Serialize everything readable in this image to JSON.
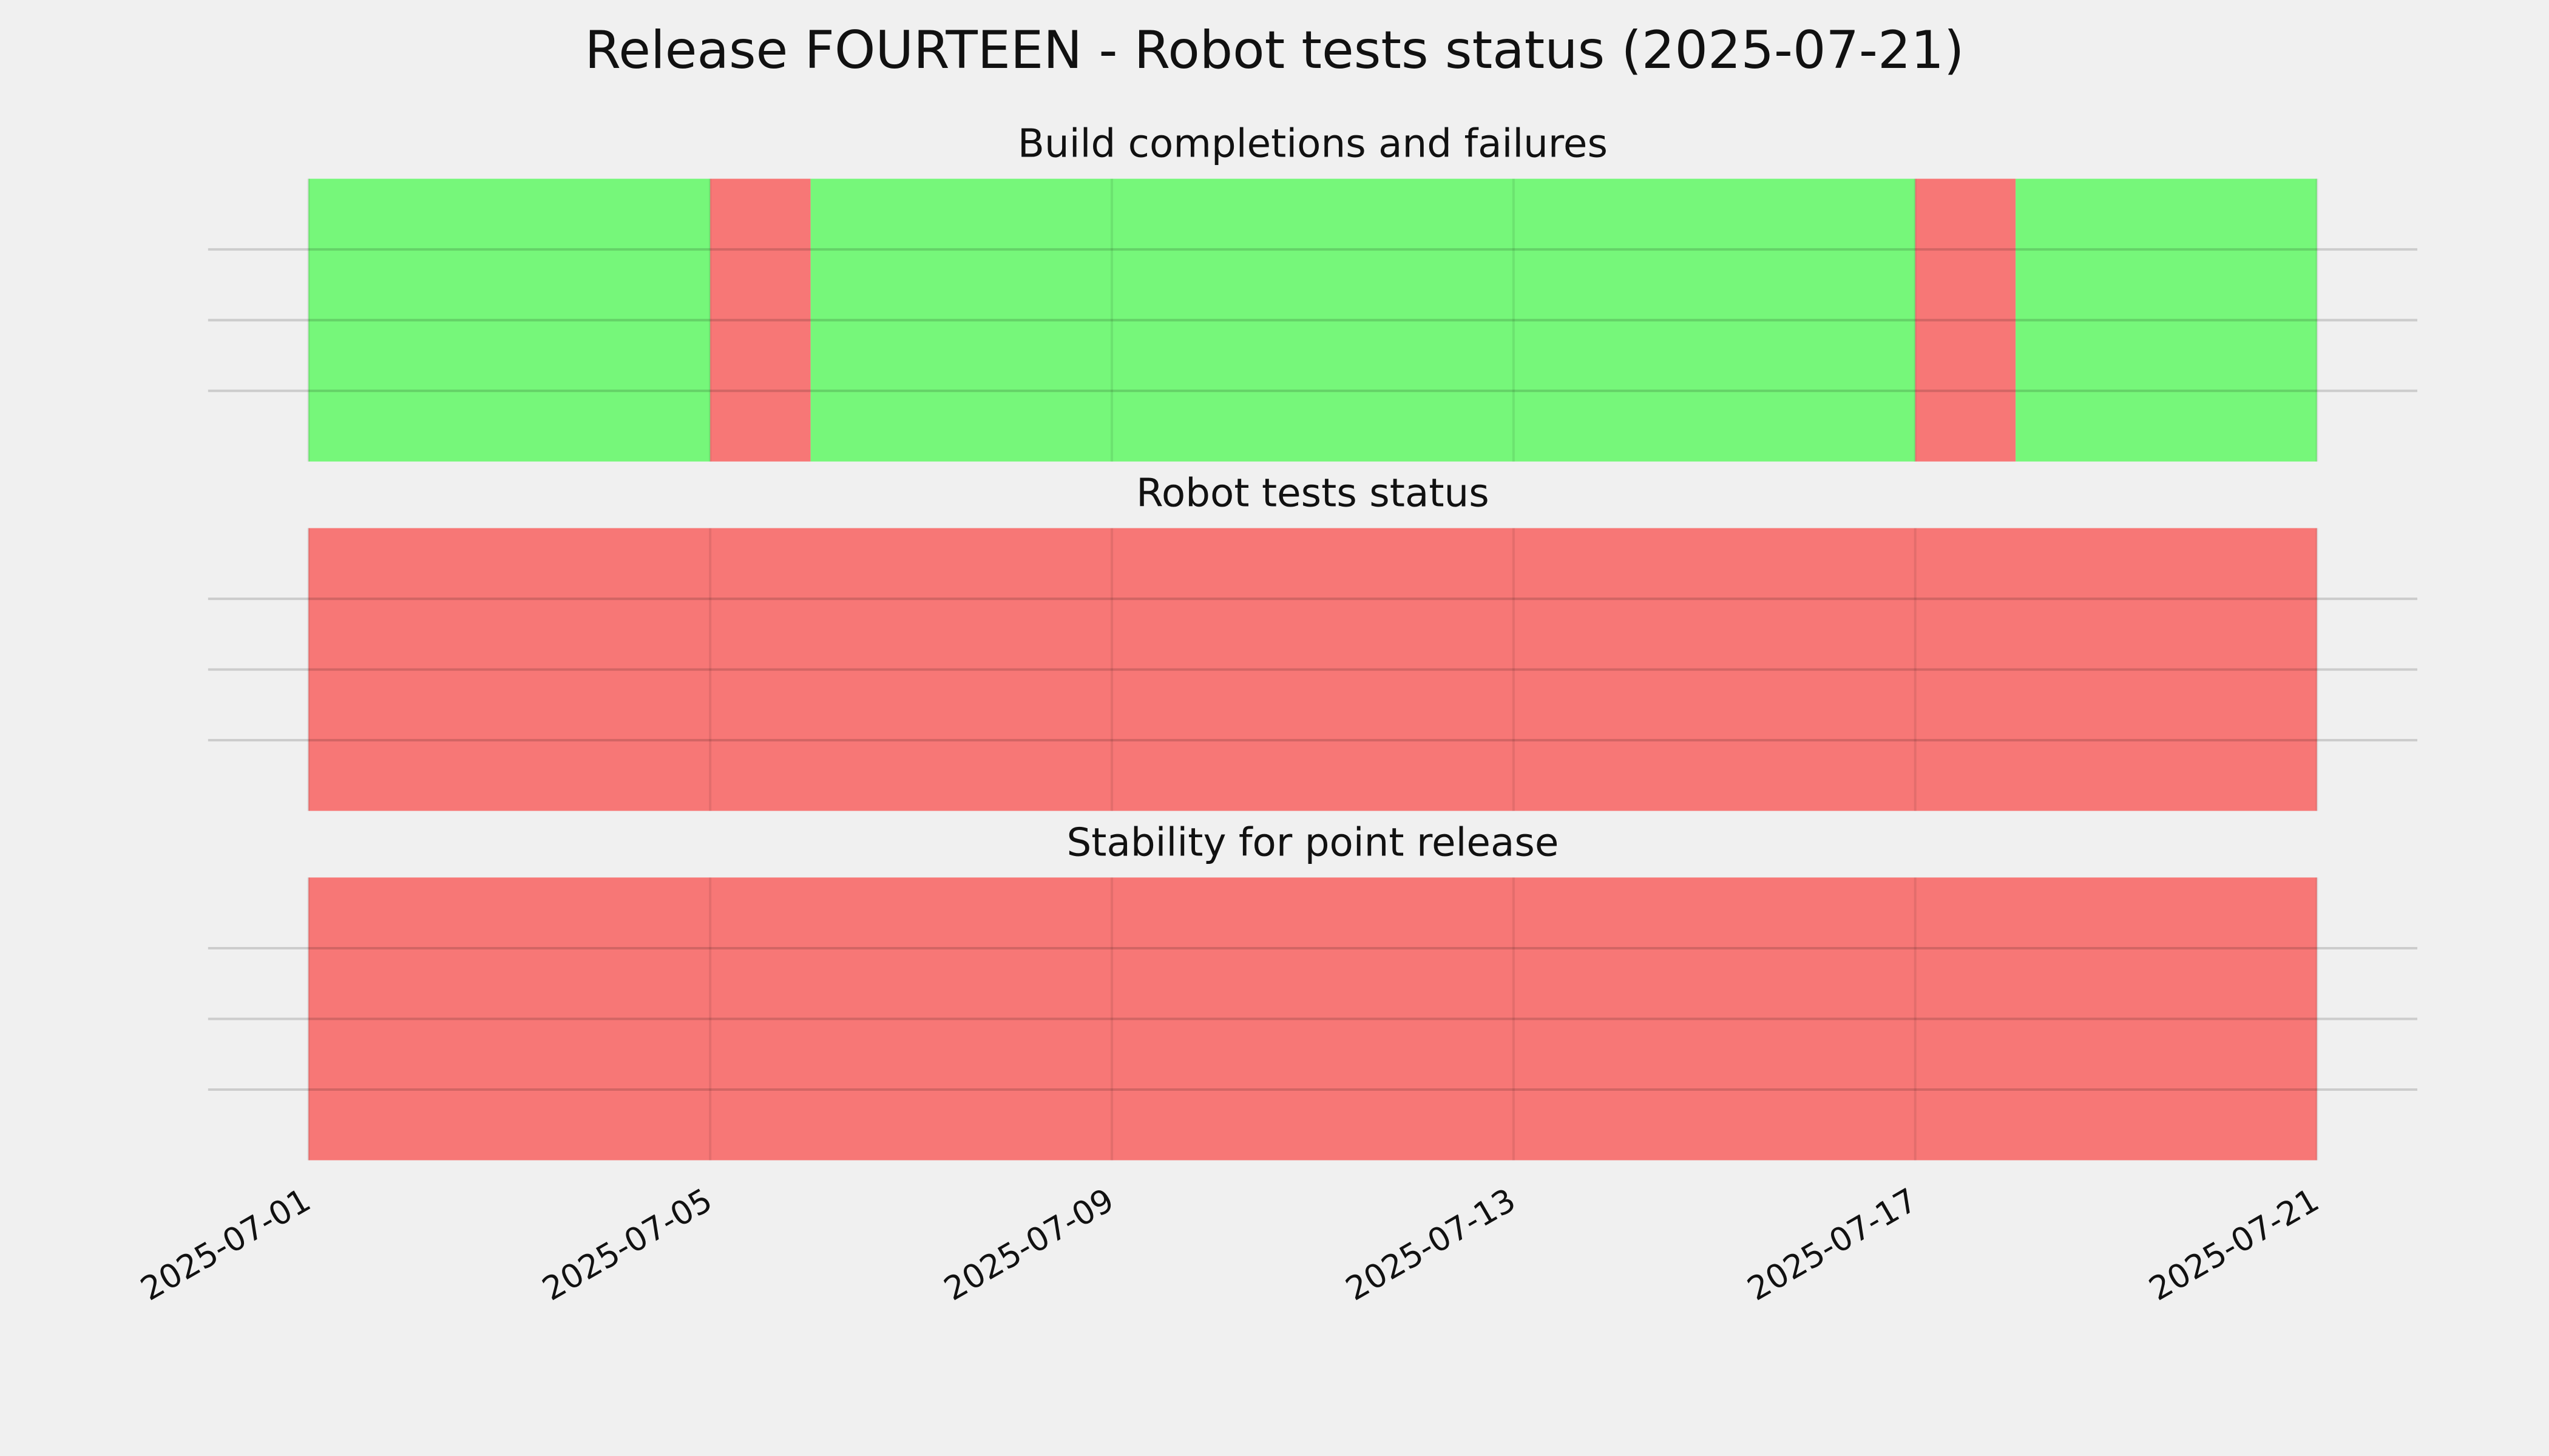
{
  "title": "Release FOURTEEN - Robot tests status (2025-07-21)",
  "chart_data": [
    {
      "type": "timeline",
      "title": "Build completions and failures",
      "xlim": [
        "2025-06-30",
        "2025-07-22"
      ],
      "xticks": [
        "2025-07-01",
        "2025-07-05",
        "2025-07-09",
        "2025-07-13",
        "2025-07-17",
        "2025-07-21"
      ],
      "show_xtick_labels": false,
      "ylim": [
        0,
        1
      ],
      "yticks": [
        0.25,
        0.5,
        0.75
      ],
      "grid": true,
      "segments": [
        {
          "start": "2025-07-01",
          "end": "2025-07-05",
          "color": "#76f77a"
        },
        {
          "start": "2025-07-05",
          "end": "2025-07-06",
          "color": "#f77776"
        },
        {
          "start": "2025-07-06",
          "end": "2025-07-17",
          "color": "#76f77a"
        },
        {
          "start": "2025-07-17",
          "end": "2025-07-18",
          "color": "#f77776"
        },
        {
          "start": "2025-07-18",
          "end": "2025-07-21",
          "color": "#76f77a"
        }
      ]
    },
    {
      "type": "timeline",
      "title": "Robot tests status",
      "xlim": [
        "2025-06-30",
        "2025-07-22"
      ],
      "xticks": [
        "2025-07-01",
        "2025-07-05",
        "2025-07-09",
        "2025-07-13",
        "2025-07-17",
        "2025-07-21"
      ],
      "show_xtick_labels": false,
      "ylim": [
        0,
        1
      ],
      "yticks": [
        0.25,
        0.5,
        0.75
      ],
      "grid": true,
      "segments": [
        {
          "start": "2025-07-01",
          "end": "2025-07-21",
          "color": "#f77776"
        }
      ]
    },
    {
      "type": "timeline",
      "title": "Stability for point release",
      "xlim": [
        "2025-06-30",
        "2025-07-22"
      ],
      "xticks": [
        "2025-07-01",
        "2025-07-05",
        "2025-07-09",
        "2025-07-13",
        "2025-07-17",
        "2025-07-21"
      ],
      "show_xtick_labels": true,
      "ylim": [
        0,
        1
      ],
      "yticks": [
        0.25,
        0.5,
        0.75
      ],
      "grid": true,
      "segments": [
        {
          "start": "2025-07-01",
          "end": "2025-07-21",
          "color": "#f77776"
        }
      ]
    }
  ]
}
